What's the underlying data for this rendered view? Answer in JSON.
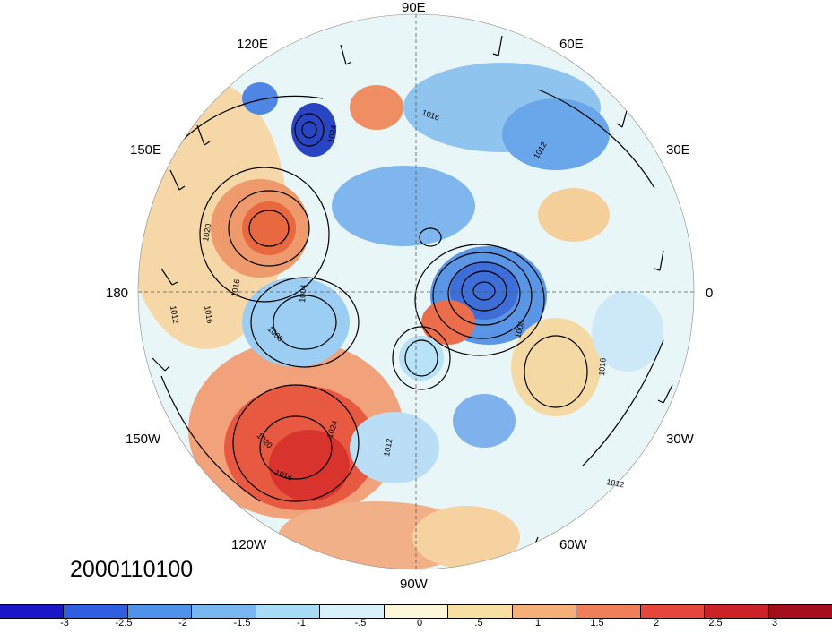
{
  "timestamp": "2000110100",
  "longitude_labels": {
    "top": "90E",
    "top_left": "120E",
    "top_right": "60E",
    "upper_left": "150E",
    "upper_right": "30E",
    "left": "180",
    "right": "0",
    "lower_left": "150W",
    "lower_right": "30W",
    "bottom_left": "120W",
    "bottom_right": "60W",
    "bottom": "90W"
  },
  "contour_labels": [
    "1016",
    "1024",
    "1012",
    "1020",
    "1016",
    "1012",
    "1016",
    "1004",
    "1008",
    "1008",
    "1016",
    "1020",
    "1024",
    "1016",
    "1012",
    "1012"
  ],
  "colorbar": {
    "ticks": [
      "-3",
      "-2.5",
      "-2",
      "-1.5",
      "-1",
      "-.5",
      "0",
      ".5",
      "1",
      "1.5",
      "2",
      "2.5",
      "3"
    ],
    "colors": [
      "#1b17c8",
      "#2f5fe0",
      "#4f92ea",
      "#78b6f0",
      "#a7dcf6",
      "#d6f1fa",
      "#fbf7d7",
      "#f7dfa2",
      "#f5b079",
      "#ee7f58",
      "#e7453c",
      "#cc2126",
      "#a40e1c"
    ]
  }
}
